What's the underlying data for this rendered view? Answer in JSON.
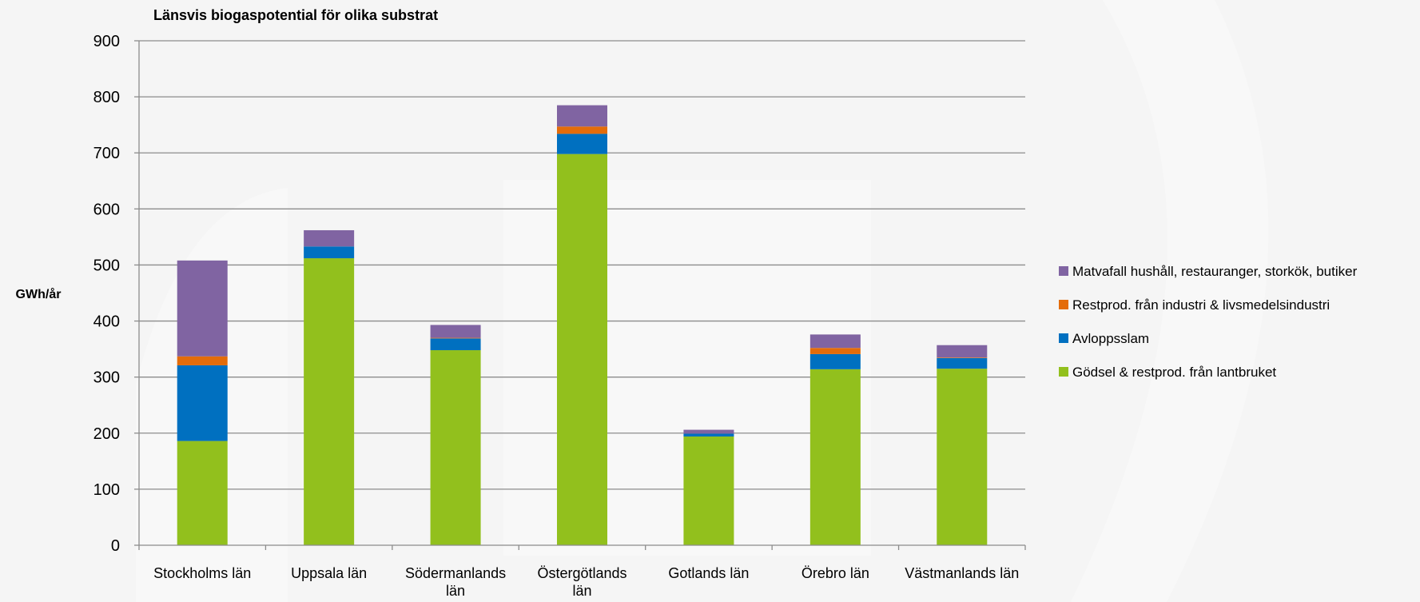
{
  "chart_data": {
    "type": "bar",
    "stacked": true,
    "title": "Länsvis biogaspotential för olika substrat",
    "xlabel": "",
    "ylabel": "GWh/år",
    "ylim": [
      0,
      900
    ],
    "yticks": [
      0,
      100,
      200,
      300,
      400,
      500,
      600,
      700,
      800,
      900
    ],
    "ytick_labels": [
      "0",
      "100",
      "200",
      "300",
      "400",
      "500",
      "600",
      "700",
      "800",
      "900"
    ],
    "grid": true,
    "legend_position": "right",
    "categories": [
      "Stockholms län",
      "Uppsala län",
      "Södermanlands län",
      "Östergötlands län",
      "Gotlands län",
      "Örebro län",
      "Västmanlands län"
    ],
    "series": [
      {
        "name": "Gödsel & restprod. från lantbruket",
        "color": "#92c01d",
        "values": [
          186,
          512,
          348,
          698,
          194,
          314,
          315
        ]
      },
      {
        "name": "Avloppsslam",
        "color": "#0070c0",
        "values": [
          135,
          21,
          21,
          36,
          5,
          27,
          19
        ]
      },
      {
        "name": "Restprod. från industri & livsmedelsindustri",
        "color": "#e46c0a",
        "values": [
          16,
          0,
          1,
          13,
          0,
          11,
          1
        ]
      },
      {
        "name": "Matvafall hushåll, restauranger, storkök, butiker",
        "color": "#8064a2",
        "values": [
          171,
          29,
          23,
          38,
          7,
          24,
          22
        ]
      }
    ]
  }
}
